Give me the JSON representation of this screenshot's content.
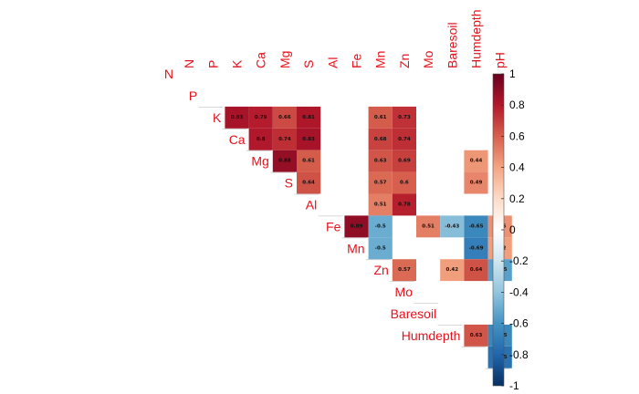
{
  "chart_data": {
    "type": "heatmap",
    "variables": [
      "N",
      "P",
      "K",
      "Ca",
      "Mg",
      "S",
      "Al",
      "Fe",
      "Mn",
      "Zn",
      "Mo",
      "Baresoil",
      "Humdepth",
      "pH"
    ],
    "cells": [
      {
        "row": "P",
        "col": "K",
        "value": 0.83
      },
      {
        "row": "P",
        "col": "Ca",
        "value": 0.79
      },
      {
        "row": "P",
        "col": "Mg",
        "value": 0.66
      },
      {
        "row": "P",
        "col": "S",
        "value": 0.81
      },
      {
        "row": "P",
        "col": "Mn",
        "value": 0.61
      },
      {
        "row": "P",
        "col": "Zn",
        "value": 0.73
      },
      {
        "row": "K",
        "col": "Ca",
        "value": 0.8
      },
      {
        "row": "K",
        "col": "Mg",
        "value": 0.74
      },
      {
        "row": "K",
        "col": "S",
        "value": 0.83
      },
      {
        "row": "K",
        "col": "Mn",
        "value": 0.68
      },
      {
        "row": "K",
        "col": "Zn",
        "value": 0.74
      },
      {
        "row": "Ca",
        "col": "Mg",
        "value": 0.88
      },
      {
        "row": "Ca",
        "col": "S",
        "value": 0.61
      },
      {
        "row": "Ca",
        "col": "Mn",
        "value": 0.63
      },
      {
        "row": "Ca",
        "col": "Zn",
        "value": 0.69
      },
      {
        "row": "Ca",
        "col": "Humdepth",
        "value": 0.44
      },
      {
        "row": "Mg",
        "col": "S",
        "value": 0.64
      },
      {
        "row": "Mg",
        "col": "Mn",
        "value": 0.57
      },
      {
        "row": "Mg",
        "col": "Zn",
        "value": 0.6
      },
      {
        "row": "Mg",
        "col": "Humdepth",
        "value": 0.49
      },
      {
        "row": "S",
        "col": "Mn",
        "value": 0.51
      },
      {
        "row": "S",
        "col": "Zn",
        "value": 0.78
      },
      {
        "row": "Al",
        "col": "Fe",
        "value": 0.89
      },
      {
        "row": "Al",
        "col": "Mn",
        "value": -0.5
      },
      {
        "row": "Al",
        "col": "Mo",
        "value": 0.51
      },
      {
        "row": "Al",
        "col": "Baresoil",
        "value": -0.43
      },
      {
        "row": "Al",
        "col": "Humdepth",
        "value": -0.65
      },
      {
        "row": "Al",
        "col": "pH",
        "value": 0.46
      },
      {
        "row": "Fe",
        "col": "Mn",
        "value": -0.5
      },
      {
        "row": "Fe",
        "col": "Humdepth",
        "value": -0.69
      },
      {
        "row": "Fe",
        "col": "pH",
        "value": 0.42
      },
      {
        "row": "Mn",
        "col": "Zn",
        "value": 0.57
      },
      {
        "row": "Mn",
        "col": "Baresoil",
        "value": 0.42
      },
      {
        "row": "Mn",
        "col": "Humdepth",
        "value": 0.64
      },
      {
        "row": "Mn",
        "col": "pH",
        "value": -0.55
      },
      {
        "row": "Baresoil",
        "col": "Humdepth",
        "value": 0.63
      },
      {
        "row": "Baresoil",
        "col": "pH",
        "value": -0.65
      },
      {
        "row": "Humdepth",
        "col": "pH",
        "value": -0.75
      }
    ],
    "colorbar": {
      "ticks": [
        "1",
        "0.8",
        "0.6",
        "0.4",
        "0.2",
        "0",
        "-0.2",
        "-0.4",
        "-0.6",
        "-0.8",
        "-1"
      ],
      "range": [
        -1,
        1
      ]
    },
    "colors": {
      "label": "#e8101a",
      "scale": [
        "#67001f",
        "#b2182b",
        "#d6604d",
        "#f4a582",
        "#fddbc7",
        "#ffffff",
        "#d1e5f0",
        "#92c5de",
        "#4393c3",
        "#2166ac",
        "#053061"
      ]
    }
  }
}
